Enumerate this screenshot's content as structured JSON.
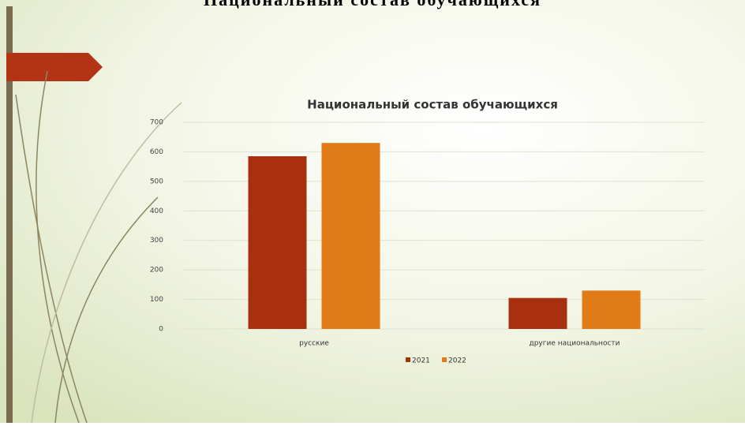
{
  "slide_title": "Национальный состав обучающихся",
  "chart_data": {
    "type": "bar",
    "title": "Национальный состав обучающихся",
    "categories": [
      "русские",
      "другие национальности"
    ],
    "series": [
      {
        "name": "2021",
        "color": "#a8300f",
        "values": [
          585,
          105
        ]
      },
      {
        "name": "2022",
        "color": "#e07b17",
        "values": [
          630,
          130
        ]
      }
    ],
    "ylim": [
      0,
      700
    ],
    "yticks": [
      0,
      100,
      200,
      300,
      400,
      500,
      600,
      700
    ],
    "grid": true,
    "legend": "bottom"
  }
}
